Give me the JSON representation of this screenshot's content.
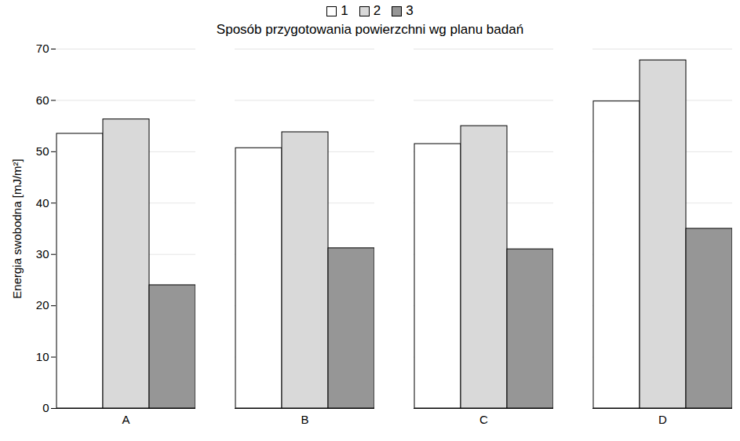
{
  "chart_data": {
    "type": "bar",
    "title": "Sposób przygotowania powierzchni wg planu badań",
    "y_label": "Energia swobodna [mJ/m²]",
    "categories": [
      "A",
      "B",
      "C",
      "D"
    ],
    "series": [
      {
        "name": "1",
        "color": "#ffffff",
        "values": [
          53.5,
          50.7,
          51.5,
          59.8
        ]
      },
      {
        "name": "2",
        "color": "#d9d9d9",
        "values": [
          56.3,
          53.8,
          55.0,
          67.8
        ]
      },
      {
        "name": "3",
        "color": "#969696",
        "values": [
          24.0,
          31.2,
          31.0,
          35.0
        ]
      }
    ],
    "ylim": [
      0,
      70
    ],
    "yticks": [
      0,
      10,
      20,
      30,
      40,
      50,
      60,
      70
    ],
    "grid": true,
    "legend": "top"
  }
}
